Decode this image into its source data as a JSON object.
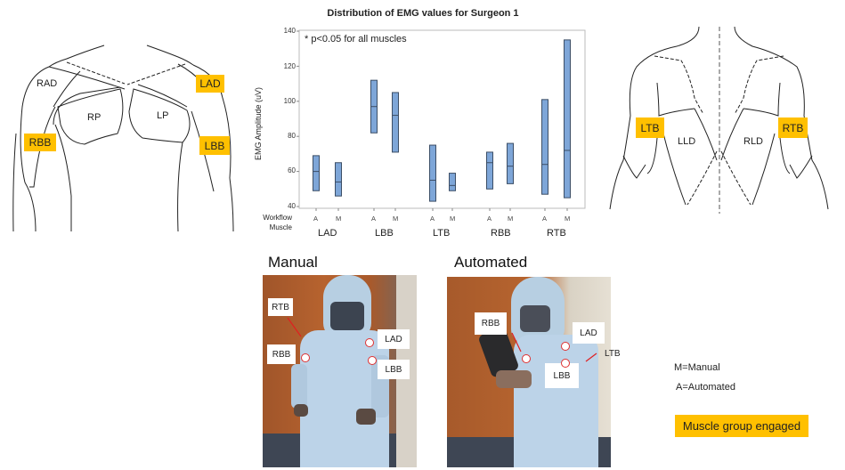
{
  "front_diagram": {
    "labels": {
      "rad": "RAD",
      "rp": "RP",
      "lp": "LP"
    },
    "tags": {
      "lad": "LAD",
      "rbb": "RBB",
      "lbb": "LBB"
    }
  },
  "back_diagram": {
    "labels": {
      "lld": "LLD",
      "rld": "RLD"
    },
    "tags": {
      "ltb": "LTB",
      "rtb": "RTB"
    }
  },
  "chart_data": {
    "type": "boxplot",
    "title": "Distribution of EMG values for Surgeon 1",
    "annotation": "* p<0.05 for all muscles",
    "ylabel": "EMG Amplitude (uV)",
    "xlabel_rows": [
      "Workflow",
      "Muscle"
    ],
    "ylim": [
      40,
      140
    ],
    "yticks": [
      40,
      60,
      80,
      100,
      120,
      140
    ],
    "grid": false,
    "categories": [
      "LAD",
      "LBB",
      "LTB",
      "RBB",
      "RTB"
    ],
    "workflows": [
      "A",
      "M"
    ],
    "series": [
      {
        "muscle": "LAD",
        "workflow": "A",
        "low": 49,
        "median": 60,
        "high": 69
      },
      {
        "muscle": "LAD",
        "workflow": "M",
        "low": 46,
        "median": 54,
        "high": 65
      },
      {
        "muscle": "LBB",
        "workflow": "A",
        "low": 82,
        "median": 97,
        "high": 112
      },
      {
        "muscle": "LBB",
        "workflow": "M",
        "low": 71,
        "median": 92,
        "high": 105
      },
      {
        "muscle": "LTB",
        "workflow": "A",
        "low": 43,
        "median": 55,
        "high": 75
      },
      {
        "muscle": "LTB",
        "workflow": "M",
        "low": 49,
        "median": 52,
        "high": 59
      },
      {
        "muscle": "RBB",
        "workflow": "A",
        "low": 50,
        "median": 65,
        "high": 71
      },
      {
        "muscle": "RBB",
        "workflow": "M",
        "low": 53,
        "median": 63,
        "high": 76
      },
      {
        "muscle": "RTB",
        "workflow": "A",
        "low": 47,
        "median": 64,
        "high": 101
      },
      {
        "muscle": "RTB",
        "workflow": "M",
        "low": 45,
        "median": 72,
        "high": 135
      }
    ],
    "box_color": "#7ea6d8",
    "box_border": "#3c4e66"
  },
  "photos": {
    "manual": {
      "title": "Manual",
      "callouts": {
        "rtb": "RTB",
        "rbb": "RBB",
        "lad": "LAD",
        "lbb": "LBB"
      }
    },
    "automated": {
      "title": "Automated",
      "callouts": {
        "rbb": "RBB",
        "lad": "LAD",
        "lbb": "LBB",
        "ltb": "LTB"
      }
    }
  },
  "legend": {
    "manual_def": "M=Manual",
    "automated_def": "A=Automated",
    "highlight": "Muscle group engaged",
    "highlight_color": "#ffc000"
  }
}
